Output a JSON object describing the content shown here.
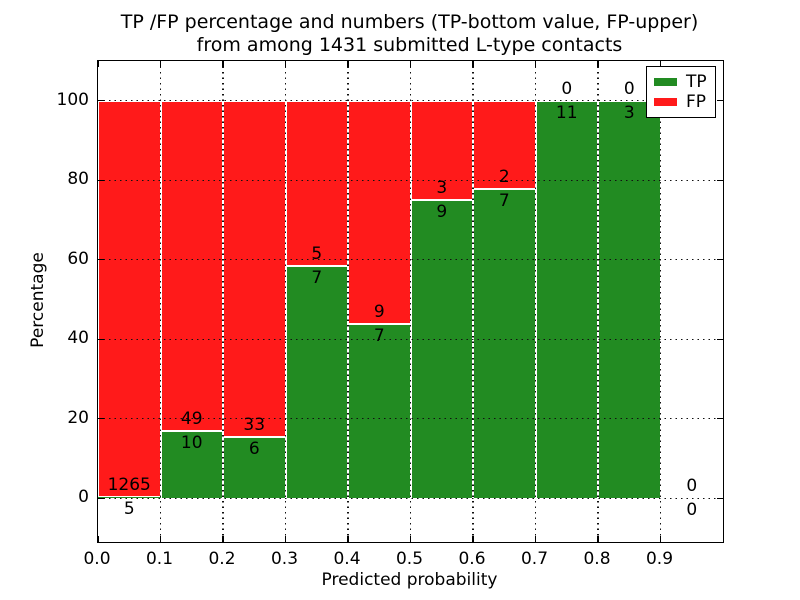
{
  "chart_data": {
    "type": "bar",
    "stacked": true,
    "units": "percent",
    "title": "TP /FP percentage and numbers (TP-bottom value, FP-upper)",
    "subtitle": "from among 1431 submitted L-type contacts",
    "xlabel": "Predicted probability",
    "ylabel": "Percentage",
    "total_contacts": 1431,
    "xlim": [
      0.0,
      1.0
    ],
    "ylim": [
      -11,
      110
    ],
    "x_tick_values": [
      0.0,
      0.1,
      0.2,
      0.3,
      0.4,
      0.5,
      0.6,
      0.7,
      0.8,
      0.9
    ],
    "x_tick_labels": [
      "0.0",
      "0.1",
      "0.2",
      "0.3",
      "0.4",
      "0.5",
      "0.6",
      "0.7",
      "0.8",
      "0.9"
    ],
    "y_tick_values": [
      0,
      20,
      40,
      60,
      80,
      100
    ],
    "y_tick_labels": [
      "0",
      "20",
      "40",
      "60",
      "80",
      "100"
    ],
    "grid": {
      "style": "dotted",
      "color": "#000000",
      "x": true,
      "y": true
    },
    "legend": {
      "position": "upper right",
      "entries": [
        {
          "label": "TP",
          "color": "#228b22"
        },
        {
          "label": "FP",
          "color": "#ff1a1a"
        }
      ]
    },
    "colors": {
      "tp": "#228b22",
      "fp": "#ff1a1a",
      "bar_edge": "#ffffff"
    },
    "bins": [
      {
        "range": [
          0.0,
          0.1
        ],
        "tp": 5,
        "fp": 1265,
        "tp_pct": 0.39
      },
      {
        "range": [
          0.1,
          0.2
        ],
        "tp": 10,
        "fp": 49,
        "tp_pct": 16.95
      },
      {
        "range": [
          0.2,
          0.3
        ],
        "tp": 6,
        "fp": 33,
        "tp_pct": 15.38
      },
      {
        "range": [
          0.3,
          0.4
        ],
        "tp": 7,
        "fp": 5,
        "tp_pct": 58.33
      },
      {
        "range": [
          0.4,
          0.5
        ],
        "tp": 7,
        "fp": 9,
        "tp_pct": 43.75
      },
      {
        "range": [
          0.5,
          0.6
        ],
        "tp": 9,
        "fp": 3,
        "tp_pct": 75.0
      },
      {
        "range": [
          0.6,
          0.7
        ],
        "tp": 7,
        "fp": 2,
        "tp_pct": 77.78
      },
      {
        "range": [
          0.7,
          0.8
        ],
        "tp": 11,
        "fp": 0,
        "tp_pct": 100.0
      },
      {
        "range": [
          0.8,
          0.9
        ],
        "tp": 3,
        "fp": 0,
        "tp_pct": 100.0
      },
      {
        "range": [
          0.9,
          1.0
        ],
        "tp": 0,
        "fp": 0,
        "tp_pct": null
      }
    ]
  }
}
